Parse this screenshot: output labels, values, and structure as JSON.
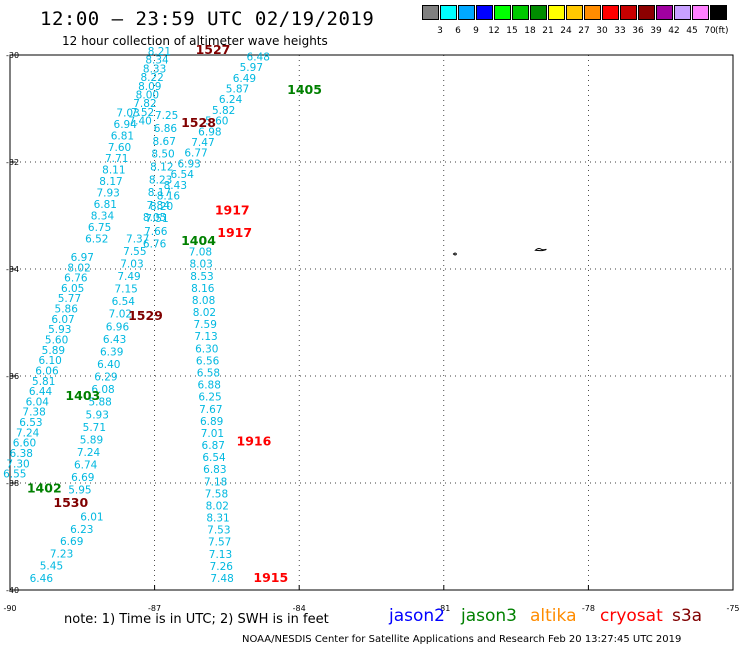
{
  "header": {
    "title": "12:00 – 23:59 UTC 02/19/2019",
    "subtitle": "12 hour collection of altimeter wave heights"
  },
  "colorbar": {
    "unit": "(ft)",
    "bins": [
      {
        "label": "3",
        "color": "#808080"
      },
      {
        "label": "6",
        "color": "#00ffff"
      },
      {
        "label": "9",
        "color": "#00a8ff"
      },
      {
        "label": "12",
        "color": "#0000ff"
      },
      {
        "label": "15",
        "color": "#00ff00"
      },
      {
        "label": "18",
        "color": "#00c800"
      },
      {
        "label": "21",
        "color": "#008c00"
      },
      {
        "label": "24",
        "color": "#ffff00"
      },
      {
        "label": "27",
        "color": "#ffc800"
      },
      {
        "label": "30",
        "color": "#ff8c00"
      },
      {
        "label": "33",
        "color": "#ff0000"
      },
      {
        "label": "36",
        "color": "#c80000"
      },
      {
        "label": "39",
        "color": "#8c0000"
      },
      {
        "label": "42",
        "color": "#a000a0"
      },
      {
        "label": "45",
        "color": "#c8a0ff"
      },
      {
        "label": "70",
        "color": "#ff80ff"
      },
      {
        "label": "",
        "color": "#000000"
      }
    ]
  },
  "axes": {
    "lat_range": [
      -40,
      -30
    ],
    "lon_range": [
      -90,
      -75
    ],
    "lat_ticks": [
      "-30",
      "-32",
      "-34",
      "-36",
      "-38",
      "-40"
    ],
    "lon_ticks": [
      "-90",
      "-87",
      "-84",
      "-81",
      "-78",
      "-75"
    ]
  },
  "track_colors": {
    "jason2": "#0000ff",
    "jason3": "#008000",
    "altika": "#ff8c00",
    "cryosat": "#ff0000",
    "s3a": "#800000",
    "wave_value": "#00b8e0"
  },
  "pass_labels": [
    {
      "text": "1527",
      "sat": "s3a",
      "lon": -86.15,
      "lat": -29.98
    },
    {
      "text": "1405",
      "sat": "jason3",
      "lon": -84.25,
      "lat": -30.73
    },
    {
      "text": "1528",
      "sat": "s3a",
      "lon": -86.45,
      "lat": -31.35
    },
    {
      "text": "1917",
      "sat": "cryosat",
      "lon": -85.75,
      "lat": -32.98
    },
    {
      "text": "1917",
      "sat": "cryosat",
      "lon": -85.7,
      "lat": -33.4
    },
    {
      "text": "1404",
      "sat": "jason3",
      "lon": -86.45,
      "lat": -33.55
    },
    {
      "text": "1529",
      "sat": "s3a",
      "lon": -87.55,
      "lat": -34.95
    },
    {
      "text": "1403",
      "sat": "jason3",
      "lon": -88.85,
      "lat": -36.45
    },
    {
      "text": "1916",
      "sat": "cryosat",
      "lon": -85.3,
      "lat": -37.3
    },
    {
      "text": "1402",
      "sat": "jason3",
      "lon": -89.65,
      "lat": -38.18
    },
    {
      "text": "1530",
      "sat": "s3a",
      "lon": -89.1,
      "lat": -38.45
    },
    {
      "text": "1915",
      "sat": "cryosat",
      "lon": -84.95,
      "lat": -39.85
    }
  ],
  "tracks": [
    {
      "sat": "jason3",
      "comment": "track 1405 from top right going down-left",
      "start": {
        "lon": -84.85,
        "lat": -30.1
      },
      "end": {
        "lon": -87.0,
        "lat": -33.1
      },
      "values": [
        "6.48",
        "5.97",
        "6.49",
        "5.87",
        "6.24",
        "5.82",
        "5.60",
        "6.98",
        "7.47",
        "6.77",
        "6.93",
        "6.54",
        "8.43",
        "8.16",
        "8.20",
        "8.05"
      ]
    },
    {
      "sat": "s3a",
      "comment": "track 1527 descending from top",
      "start": {
        "lon": -86.9,
        "lat": -30.0
      },
      "end": {
        "lon": -87.3,
        "lat": -31.3
      },
      "values": [
        "8.21",
        "8.34",
        "8.33",
        "8.22",
        "8.09",
        "8.00",
        "7.82",
        "7.52",
        "7.40"
      ]
    },
    {
      "sat": "s3a",
      "comment": "track 1528",
      "start": {
        "lon": -87.55,
        "lat": -31.15
      },
      "end": {
        "lon": -88.2,
        "lat": -33.5
      },
      "values": [
        "7.03",
        "6.94",
        "6.81",
        "7.60",
        "7.71",
        "8.11",
        "8.17",
        "7.93",
        "6.81",
        "8.34",
        "6.75",
        "6.52"
      ]
    },
    {
      "sat": "jason3",
      "comment": "track 1404 central",
      "start": {
        "lon": -86.75,
        "lat": -31.2
      },
      "end": {
        "lon": -87.0,
        "lat": -33.6
      },
      "values": [
        "7.25",
        "6.86",
        "8.67",
        "8.50",
        "8.12",
        "8.23",
        "8.17",
        "7.84",
        "7.51",
        "7.66",
        "6.76"
      ]
    },
    {
      "sat": "s3a",
      "comment": "track 1529 lower portion",
      "start": {
        "lon": -88.5,
        "lat": -33.85
      },
      "end": {
        "lon": -89.9,
        "lat": -37.9
      },
      "values": [
        "6.97",
        "8.02",
        "6.76",
        "6.05",
        "5.77",
        "5.86",
        "6.07",
        "5.93",
        "5.60",
        "5.89",
        "6.10",
        "6.06",
        "5.81",
        "6.44",
        "6.04",
        "7.38",
        "6.53",
        "7.24",
        "6.60",
        "6.38",
        "7.30",
        "6.55"
      ]
    },
    {
      "sat": "jason3",
      "comment": "track 1403 middle",
      "start": {
        "lon": -87.35,
        "lat": -33.5
      },
      "end": {
        "lon": -88.55,
        "lat": -38.2
      },
      "values": [
        "7.37",
        "7.55",
        "7.03",
        "7.49",
        "7.15",
        "6.54",
        "7.02",
        "6.96",
        "6.43",
        "6.39",
        "6.40",
        "6.29",
        "6.08",
        "5.88",
        "5.93",
        "5.71",
        "5.89",
        "7.24",
        "6.74",
        "6.69",
        "5.95"
      ]
    },
    {
      "sat": "cryosat",
      "comment": "track 1916 -> 1915 descending",
      "start": {
        "lon": -86.05,
        "lat": -33.75
      },
      "end": {
        "lon": -85.6,
        "lat": -39.85
      },
      "values": [
        "7.08",
        "8.03",
        "8.53",
        "8.16",
        "8.08",
        "8.02",
        "7.59",
        "7.13",
        "6.30",
        "6.56",
        "6.58",
        "6.88",
        "6.25",
        "7.67",
        "6.89",
        "7.01",
        "6.87",
        "6.54",
        "6.83",
        "7.18",
        "7.58",
        "8.02",
        "8.31",
        "7.53",
        "7.57",
        "7.13",
        "7.26",
        "7.48"
      ]
    },
    {
      "sat": "s3a",
      "comment": "track 1530 bottom-left",
      "start": {
        "lon": -88.3,
        "lat": -38.7
      },
      "end": {
        "lon": -89.35,
        "lat": -39.85
      },
      "values": [
        "6.01",
        "6.23",
        "6.69",
        "7.23",
        "5.45",
        "6.46"
      ]
    }
  ],
  "footnote": "note:  1) Time is in UTC;  2) SWH is in feet",
  "legend": [
    {
      "label": "jason2",
      "color": "#0000ff"
    },
    {
      "label": "jason3",
      "color": "#008000"
    },
    {
      "label": "altika",
      "color": "#ff8c00"
    },
    {
      "label": "cryosat",
      "color": "#ff0000"
    },
    {
      "label": "s3a",
      "color": "#800000"
    }
  ],
  "credit": "NOAA/NESDIS Center for Satellite Applications and Research     Feb 20 13:27:45 UTC 2019"
}
